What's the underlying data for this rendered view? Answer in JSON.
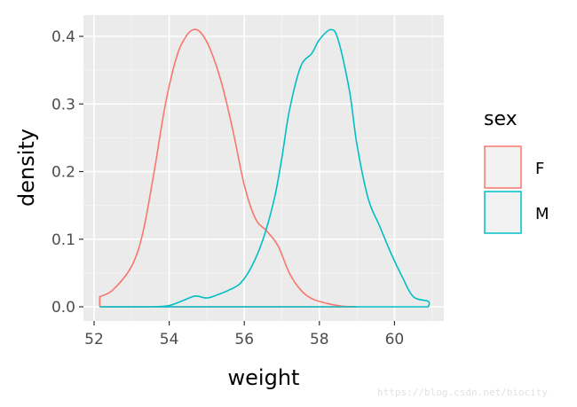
{
  "chart_data": {
    "type": "line",
    "subtype": "density",
    "title": "",
    "xlabel": "weight",
    "ylabel": "density",
    "xlim": [
      51.8,
      61.4
    ],
    "ylim": [
      -0.02,
      0.43
    ],
    "x_ticks": [
      52,
      54,
      56,
      58,
      60
    ],
    "x_tick_labels": [
      "52",
      "54",
      "56",
      "58",
      "60"
    ],
    "y_ticks": [
      0.0,
      0.1,
      0.2,
      0.3,
      0.4
    ],
    "y_tick_labels": [
      "0.0",
      "0.1",
      "0.2",
      "0.3",
      "0.4"
    ],
    "grid": true,
    "legend": {
      "title": "sex",
      "position": "right",
      "entries": [
        "F",
        "M"
      ]
    },
    "series": [
      {
        "name": "F",
        "color": "#F8766D",
        "x": [
          52.15,
          52.15,
          52.5,
          53.0,
          53.3,
          53.6,
          53.9,
          54.2,
          54.45,
          54.65,
          54.85,
          55.1,
          55.4,
          55.7,
          56.0,
          56.3,
          56.6,
          56.9,
          57.2,
          57.5,
          57.8,
          58.2,
          58.6,
          59.0
        ],
        "y": [
          0.0,
          0.015,
          0.025,
          0.06,
          0.11,
          0.2,
          0.3,
          0.37,
          0.4,
          0.41,
          0.405,
          0.38,
          0.33,
          0.26,
          0.18,
          0.13,
          0.112,
          0.09,
          0.05,
          0.025,
          0.012,
          0.005,
          0.001,
          0.0
        ]
      },
      {
        "name": "M",
        "color": "#00BFC4",
        "x": [
          52.15,
          53.5,
          54.0,
          54.4,
          54.7,
          55.0,
          55.3,
          55.6,
          55.9,
          56.2,
          56.5,
          56.8,
          57.0,
          57.2,
          57.5,
          57.8,
          58.0,
          58.3,
          58.5,
          58.8,
          59.0,
          59.3,
          59.6,
          59.9,
          60.2,
          60.5,
          60.9,
          60.9
        ],
        "y": [
          0.0,
          0.0,
          0.002,
          0.01,
          0.016,
          0.013,
          0.018,
          0.025,
          0.035,
          0.06,
          0.1,
          0.16,
          0.22,
          0.29,
          0.355,
          0.375,
          0.395,
          0.41,
          0.395,
          0.32,
          0.24,
          0.16,
          0.12,
          0.08,
          0.045,
          0.015,
          0.008,
          0.0
        ]
      }
    ]
  },
  "watermark": "https://blog.csdn.net/biocity"
}
